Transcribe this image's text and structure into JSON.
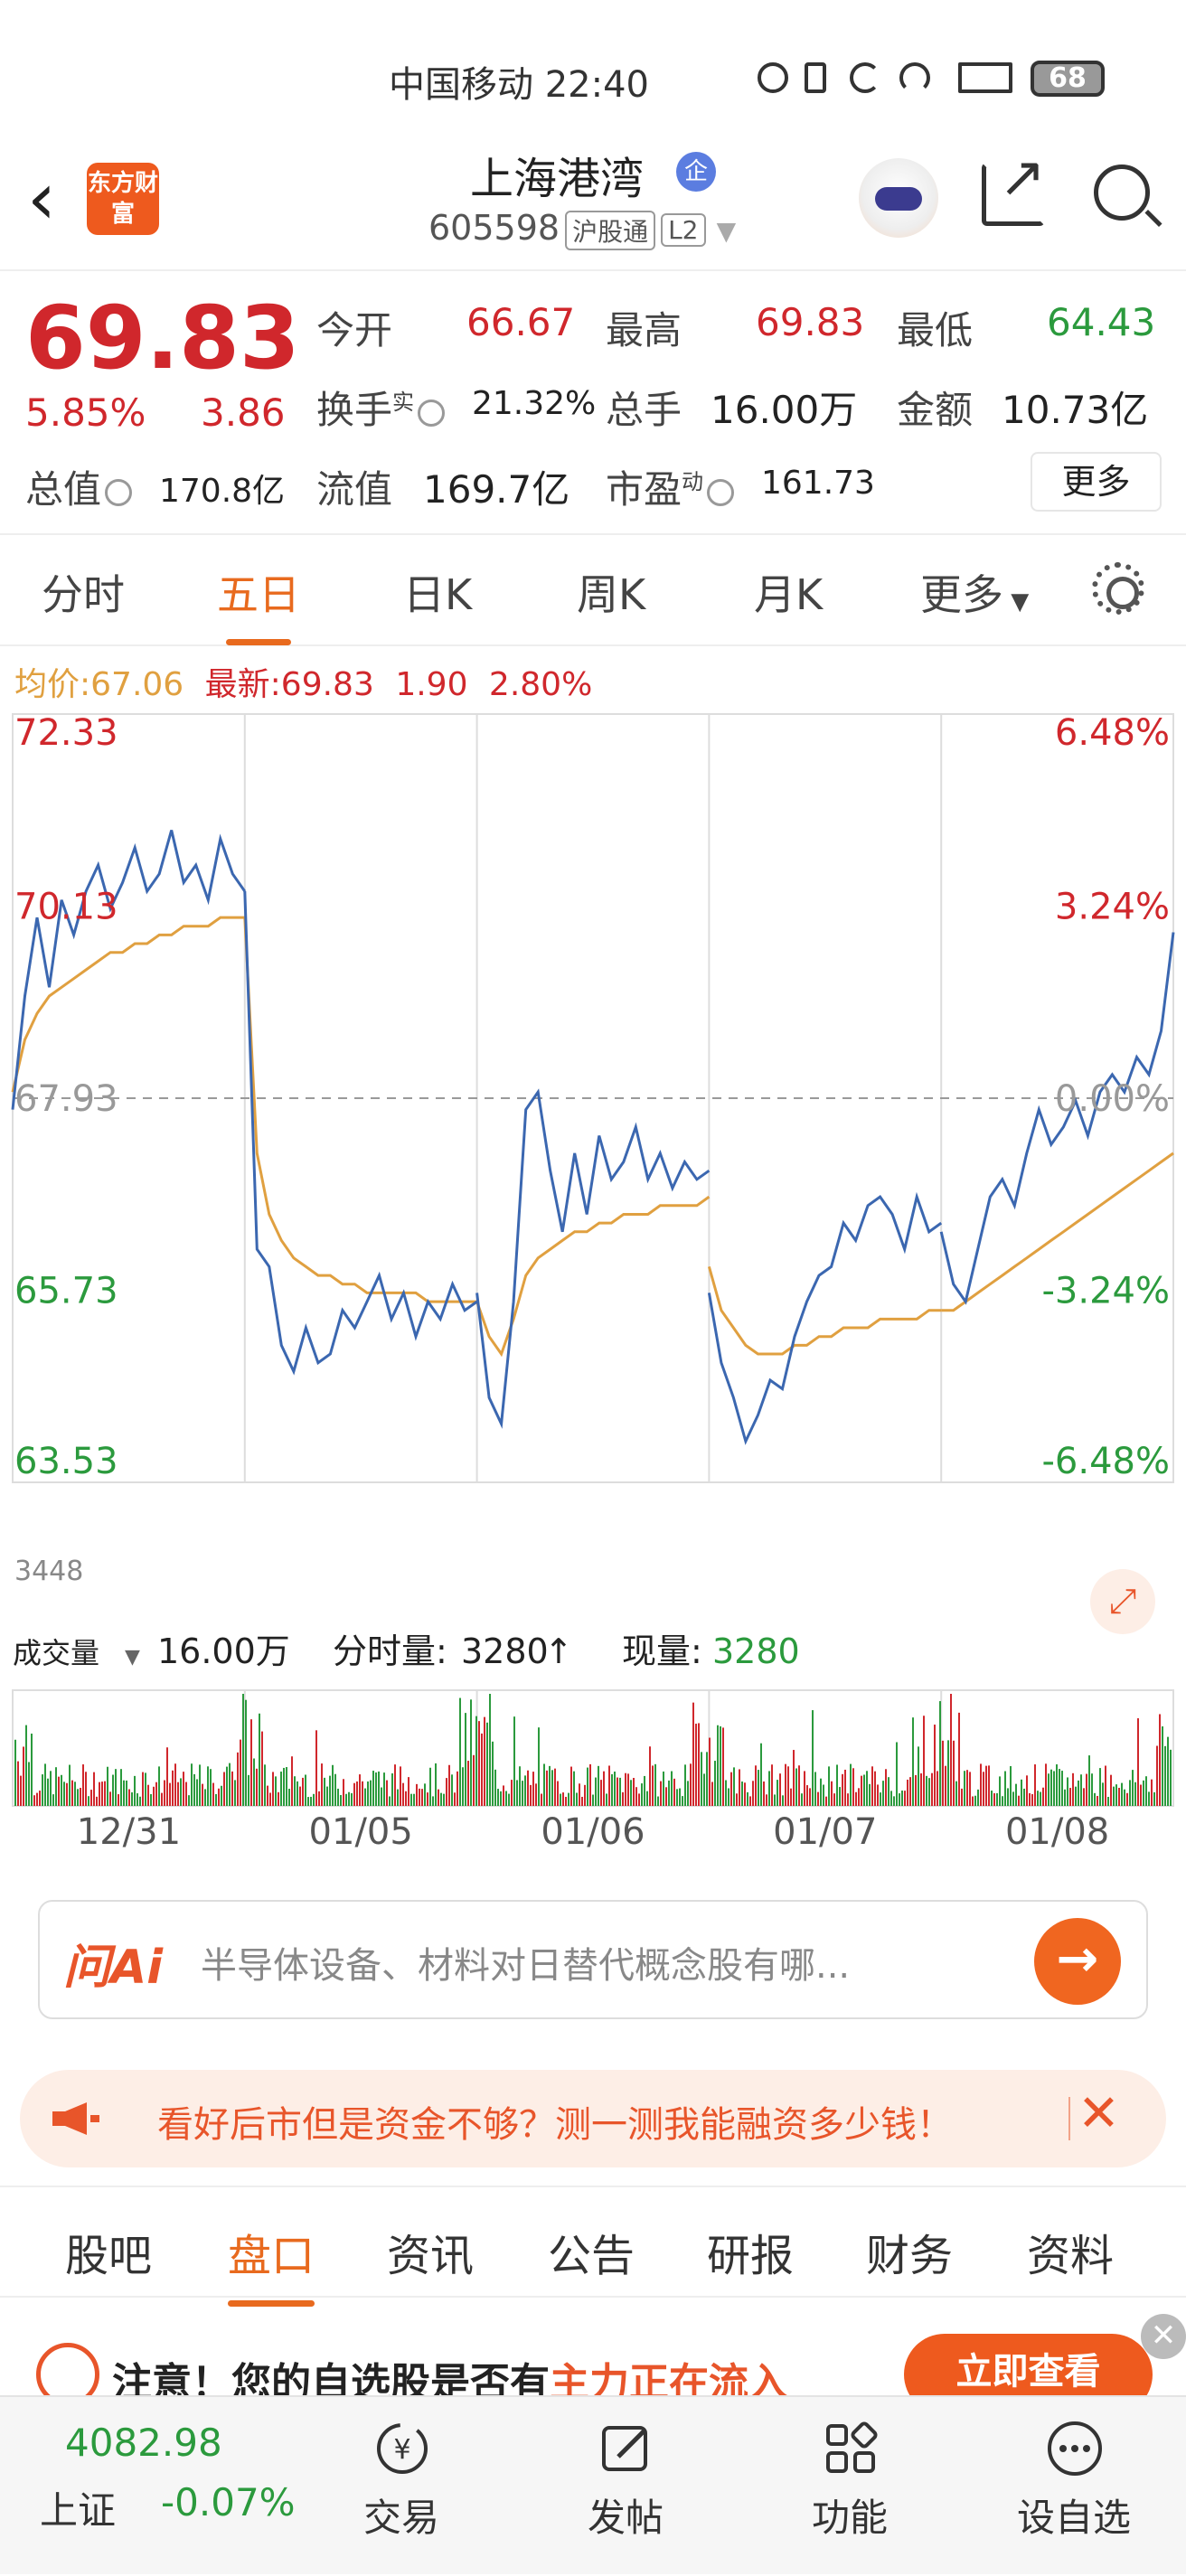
{
  "status_bar": {
    "carrier": "中国移动",
    "time": "22:40",
    "battery": "68"
  },
  "header": {
    "back_icon": "chevron-left-icon",
    "logo_text": "东方财富",
    "title": "上海港湾",
    "badge": "企",
    "code": "605598",
    "exchange_tag": "沪股通",
    "level_tag": "L2"
  },
  "quote": {
    "price": "69.83",
    "change_pct": "5.85%",
    "change": "3.86",
    "open_label": "今开",
    "open": "66.67",
    "high_label": "最高",
    "high": "69.83",
    "low_label": "最低",
    "low": "64.43",
    "turnover_label": "换手",
    "turnover_sup": "实",
    "turnover": "21.32%",
    "volume_label": "总手",
    "volume": "16.00万",
    "amount_label": "金额",
    "amount": "10.73亿",
    "mktcap_label": "总值",
    "mktcap": "170.8亿",
    "float_label": "流值",
    "float": "169.7亿",
    "pe_label": "市盈",
    "pe_sup": "动",
    "pe": "161.73",
    "more": "更多"
  },
  "chart_tabs": [
    "分时",
    "五日",
    "日K",
    "周K",
    "月K",
    "更多"
  ],
  "chart_tab_active": 1,
  "legend": {
    "avg_label": "均价:",
    "avg": "67.06",
    "latest_label": "最新:",
    "latest": "69.83",
    "change": "1.90",
    "change_pct": "2.80%"
  },
  "volume_bar": {
    "label": "成交量",
    "total": "16.00万",
    "tick_label": "分时量:",
    "tick_value": "3280",
    "now_label": "现量:",
    "now_value": "3280"
  },
  "colors": {
    "up": "#d0272c",
    "down": "#2b9a3d",
    "price_line": "#3b67b0",
    "avg_line": "#e0a040",
    "accent": "#e86a1e"
  },
  "chart_data": {
    "type": "line",
    "title": "",
    "x_days": [
      "12/31",
      "01/05",
      "01/06",
      "01/07",
      "01/08"
    ],
    "ylim": [
      63.53,
      72.33
    ],
    "y_ticks_left": [
      "72.33",
      "70.13",
      "67.93",
      "65.73",
      "63.53"
    ],
    "y_ticks_right": [
      "6.48%",
      "3.24%",
      "0.00%",
      "-3.24%",
      "-6.48%"
    ],
    "base_price": 67.93,
    "series": [
      {
        "name": "最新",
        "values": [
          [
            67.8,
            69.1,
            70.0,
            69.2,
            70.2,
            69.8,
            70.3,
            70.6,
            70.1,
            70.4,
            70.8,
            70.3,
            70.5,
            71.0,
            70.4,
            70.6,
            70.2,
            70.9,
            70.5,
            70.3
          ],
          [
            70.3,
            66.2,
            66.0,
            65.1,
            64.8,
            65.3,
            64.9,
            65.0,
            65.5,
            65.3,
            65.6,
            65.9,
            65.4,
            65.7,
            65.2,
            65.6,
            65.4,
            65.8,
            65.5,
            65.6
          ],
          [
            65.7,
            64.5,
            64.2,
            65.6,
            67.8,
            68.0,
            67.1,
            66.4,
            67.3,
            66.6,
            67.5,
            67.0,
            67.2,
            67.6,
            67.0,
            67.3,
            66.9,
            67.2,
            67.0,
            67.1
          ],
          [
            65.7,
            64.9,
            64.5,
            64.0,
            64.3,
            64.7,
            64.6,
            65.2,
            65.6,
            65.9,
            66.0,
            66.5,
            66.3,
            66.7,
            66.8,
            66.6,
            66.2,
            66.8,
            66.4,
            66.5
          ],
          [
            66.4,
            65.8,
            65.6,
            66.2,
            66.8,
            67.0,
            66.7,
            67.3,
            67.8,
            67.4,
            67.6,
            67.9,
            67.5,
            68.0,
            68.2,
            68.0,
            68.4,
            68.2,
            68.7,
            69.83
          ]
        ]
      },
      {
        "name": "均价",
        "values": [
          [
            68.0,
            68.6,
            68.9,
            69.1,
            69.2,
            69.3,
            69.4,
            69.5,
            69.6,
            69.6,
            69.7,
            69.7,
            69.8,
            69.8,
            69.9,
            69.9,
            69.9,
            70.0,
            70.0,
            70.0
          ],
          [
            70.0,
            67.3,
            66.6,
            66.3,
            66.1,
            66.0,
            65.9,
            65.9,
            65.8,
            65.8,
            65.7,
            65.7,
            65.7,
            65.7,
            65.7,
            65.6,
            65.6,
            65.6,
            65.6,
            65.6
          ],
          [
            65.6,
            65.2,
            65.0,
            65.4,
            65.9,
            66.1,
            66.2,
            66.3,
            66.4,
            66.4,
            66.5,
            66.5,
            66.6,
            66.6,
            66.6,
            66.7,
            66.7,
            66.7,
            66.7,
            66.8
          ],
          [
            66.0,
            65.5,
            65.3,
            65.1,
            65.0,
            65.0,
            65.0,
            65.1,
            65.1,
            65.2,
            65.2,
            65.3,
            65.3,
            65.3,
            65.4,
            65.4,
            65.4,
            65.4,
            65.5,
            65.5
          ],
          [
            65.5,
            65.5,
            65.6,
            65.7,
            65.8,
            65.9,
            66.0,
            66.1,
            66.2,
            66.3,
            66.4,
            66.5,
            66.6,
            66.7,
            66.8,
            66.9,
            67.0,
            67.1,
            67.2,
            67.3
          ]
        ]
      }
    ],
    "volume_max": "3448"
  },
  "ai": {
    "logo": "问Ai",
    "placeholder": "半导体设备、材料对日替代概念股有哪..."
  },
  "promo": {
    "text": "看好后市但是资金不够？测一测我能融资多少钱！"
  },
  "section_tabs": [
    "股吧",
    "盘口",
    "资讯",
    "公告",
    "研报",
    "财务",
    "资料"
  ],
  "section_tab_active": 1,
  "notice": {
    "prefix": "注意！您的自选股是否有",
    "highlight": "主力正在流入",
    "button": "立即查看"
  },
  "bottom_nav": {
    "index_value": "4082.98",
    "index_name": "上证",
    "index_change": "-0.07%",
    "items": [
      {
        "label": "交易",
        "icon": "yen-trade-icon"
      },
      {
        "label": "发帖",
        "icon": "edit-post-icon"
      },
      {
        "label": "功能",
        "icon": "grid-function-icon"
      },
      {
        "label": "设自选",
        "icon": "more-dots-icon"
      }
    ]
  }
}
